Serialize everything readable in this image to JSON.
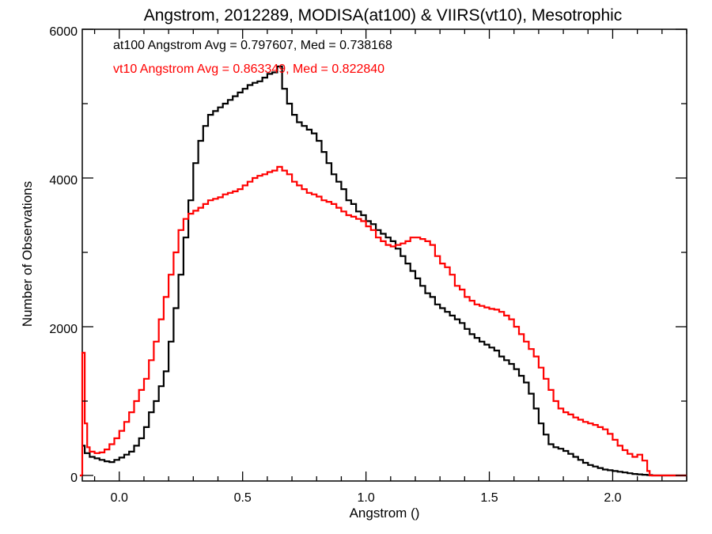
{
  "chart_data": {
    "type": "line",
    "title": "Angstrom, 2012289, MODISA(at100) & VIIRS(vt10), Mesotrophic",
    "xlabel": "Angstrom ()",
    "ylabel": "Number of Observations",
    "xlim": [
      -0.15,
      2.3
    ],
    "ylim": [
      0,
      6000
    ],
    "x_ticks": [
      0.0,
      0.5,
      1.0,
      1.5,
      2.0
    ],
    "x_tick_labels": [
      "0.0",
      "0.5",
      "1.0",
      "1.5",
      "2.0"
    ],
    "y_ticks": [
      0,
      2000,
      4000,
      6000
    ],
    "y_tick_labels": [
      "0",
      "2000",
      "4000",
      "6000"
    ],
    "grid": false,
    "annotations": [
      {
        "text": "at100 Angstrom Avg = 0.797607, Med = 0.738168",
        "color": "#000000"
      },
      {
        "text": "vt10 Angstrom Avg = 0.863349, Med = 0.822840",
        "color": "#ff0000"
      }
    ],
    "series": [
      {
        "color": "#000000",
        "x": [
          -0.15,
          -0.14,
          -0.12,
          -0.1,
          -0.08,
          -0.06,
          -0.04,
          -0.02,
          0.0,
          0.02,
          0.04,
          0.06,
          0.08,
          0.1,
          0.12,
          0.14,
          0.16,
          0.18,
          0.2,
          0.22,
          0.24,
          0.26,
          0.28,
          0.3,
          0.32,
          0.34,
          0.36,
          0.38,
          0.4,
          0.42,
          0.44,
          0.46,
          0.48,
          0.5,
          0.52,
          0.54,
          0.56,
          0.58,
          0.6,
          0.62,
          0.64,
          0.66,
          0.68,
          0.7,
          0.72,
          0.74,
          0.76,
          0.78,
          0.8,
          0.82,
          0.84,
          0.86,
          0.88,
          0.9,
          0.92,
          0.94,
          0.96,
          0.98,
          1.0,
          1.02,
          1.04,
          1.06,
          1.08,
          1.1,
          1.12,
          1.14,
          1.16,
          1.18,
          1.2,
          1.22,
          1.24,
          1.26,
          1.28,
          1.3,
          1.32,
          1.34,
          1.36,
          1.38,
          1.4,
          1.42,
          1.44,
          1.46,
          1.48,
          1.5,
          1.52,
          1.54,
          1.56,
          1.58,
          1.6,
          1.62,
          1.64,
          1.66,
          1.68,
          1.7,
          1.72,
          1.74,
          1.76,
          1.78,
          1.8,
          1.82,
          1.84,
          1.86,
          1.88,
          1.9,
          1.92,
          1.94,
          1.96,
          1.98,
          2.0,
          2.02,
          2.04,
          2.06,
          2.08,
          2.1,
          2.12,
          2.14,
          2.16,
          2.3
        ],
        "y": [
          400,
          300,
          250,
          230,
          210,
          190,
          180,
          210,
          240,
          280,
          320,
          400,
          500,
          650,
          850,
          1000,
          1200,
          1400,
          1800,
          2250,
          2700,
          3200,
          3700,
          4200,
          4500,
          4700,
          4850,
          4900,
          4950,
          5000,
          5050,
          5100,
          5150,
          5200,
          5250,
          5280,
          5300,
          5350,
          5400,
          5420,
          5500,
          5200,
          5000,
          4850,
          4750,
          4700,
          4650,
          4600,
          4500,
          4350,
          4200,
          4050,
          3950,
          3850,
          3700,
          3650,
          3550,
          3500,
          3420,
          3380,
          3300,
          3250,
          3200,
          3150,
          3050,
          2950,
          2850,
          2750,
          2650,
          2550,
          2450,
          2400,
          2300,
          2250,
          2200,
          2150,
          2100,
          2050,
          1970,
          1900,
          1850,
          1800,
          1760,
          1720,
          1680,
          1600,
          1550,
          1500,
          1430,
          1340,
          1250,
          1100,
          900,
          700,
          550,
          420,
          380,
          360,
          330,
          290,
          250,
          210,
          170,
          140,
          120,
          100,
          80,
          70,
          60,
          50,
          40,
          30,
          20,
          15,
          10,
          5,
          0,
          0
        ]
      },
      {
        "color": "#ff0000",
        "x": [
          -0.16,
          -0.15,
          -0.14,
          -0.13,
          -0.12,
          -0.1,
          -0.08,
          -0.06,
          -0.04,
          -0.02,
          0.0,
          0.02,
          0.04,
          0.06,
          0.08,
          0.1,
          0.12,
          0.14,
          0.16,
          0.18,
          0.2,
          0.22,
          0.24,
          0.26,
          0.28,
          0.3,
          0.32,
          0.34,
          0.36,
          0.38,
          0.4,
          0.42,
          0.44,
          0.46,
          0.48,
          0.5,
          0.52,
          0.54,
          0.56,
          0.58,
          0.6,
          0.62,
          0.64,
          0.66,
          0.68,
          0.7,
          0.72,
          0.74,
          0.76,
          0.78,
          0.8,
          0.82,
          0.84,
          0.86,
          0.88,
          0.9,
          0.92,
          0.94,
          0.96,
          0.98,
          1.0,
          1.02,
          1.04,
          1.06,
          1.08,
          1.1,
          1.12,
          1.14,
          1.16,
          1.18,
          1.2,
          1.22,
          1.24,
          1.26,
          1.28,
          1.3,
          1.32,
          1.34,
          1.36,
          1.38,
          1.4,
          1.42,
          1.44,
          1.46,
          1.48,
          1.5,
          1.52,
          1.54,
          1.56,
          1.58,
          1.6,
          1.62,
          1.64,
          1.66,
          1.68,
          1.7,
          1.72,
          1.74,
          1.76,
          1.78,
          1.8,
          1.82,
          1.84,
          1.86,
          1.88,
          1.9,
          1.92,
          1.94,
          1.96,
          1.98,
          2.0,
          2.02,
          2.04,
          2.06,
          2.08,
          2.1,
          2.12,
          2.14,
          2.15,
          2.3
        ],
        "y": [
          0,
          1650,
          700,
          380,
          320,
          300,
          310,
          350,
          420,
          500,
          600,
          720,
          850,
          1000,
          1150,
          1300,
          1550,
          1800,
          2100,
          2400,
          2700,
          3000,
          3300,
          3450,
          3520,
          3560,
          3600,
          3650,
          3700,
          3720,
          3740,
          3780,
          3800,
          3820,
          3850,
          3900,
          3950,
          4000,
          4030,
          4050,
          4080,
          4100,
          4150,
          4100,
          4050,
          3950,
          3900,
          3850,
          3800,
          3780,
          3750,
          3700,
          3680,
          3650,
          3600,
          3550,
          3500,
          3480,
          3450,
          3420,
          3350,
          3300,
          3200,
          3150,
          3100,
          3080,
          3100,
          3120,
          3150,
          3200,
          3200,
          3180,
          3150,
          3100,
          2950,
          2850,
          2800,
          2700,
          2550,
          2500,
          2400,
          2350,
          2300,
          2280,
          2260,
          2240,
          2230,
          2200,
          2150,
          2100,
          2000,
          1900,
          1800,
          1700,
          1600,
          1450,
          1300,
          1150,
          1000,
          900,
          850,
          820,
          780,
          750,
          720,
          700,
          680,
          650,
          620,
          560,
          480,
          400,
          340,
          290,
          250,
          280,
          200,
          60,
          0,
          0
        ]
      }
    ]
  }
}
